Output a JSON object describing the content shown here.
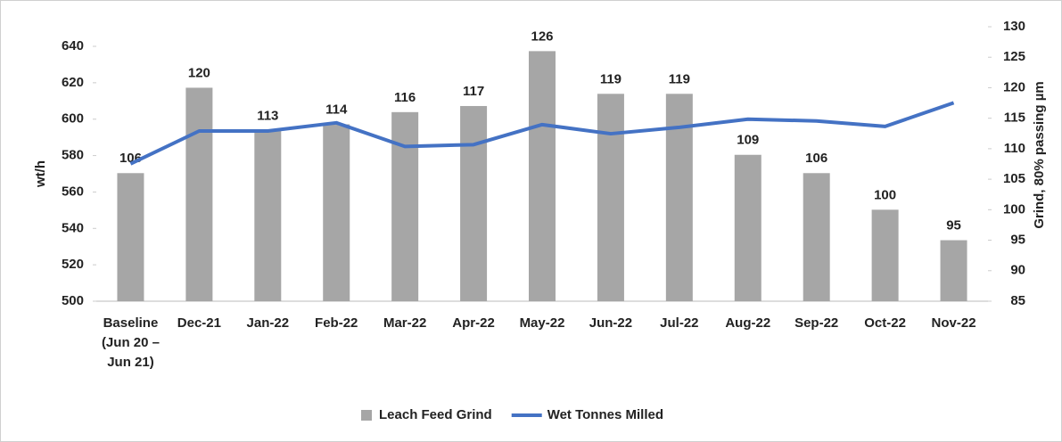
{
  "chart_data": {
    "type": "bar+line",
    "categories": [
      "Baseline (Jun 20 – Jun 21)",
      "Dec-21",
      "Jan-22",
      "Feb-22",
      "Mar-22",
      "Apr-22",
      "May-22",
      "Jun-22",
      "Jul-22",
      "Aug-22",
      "Sep-22",
      "Oct-22",
      "Nov-22"
    ],
    "y_label": "wt/h",
    "y2_label": "Grind, 80% passing µm",
    "ylim": [
      500,
      640
    ],
    "yticks": [
      500,
      520,
      540,
      560,
      580,
      600,
      620,
      640
    ],
    "y2lim": [
      85,
      130
    ],
    "y2ticks": [
      85,
      90,
      95,
      100,
      105,
      110,
      115,
      120,
      125,
      130
    ],
    "series": [
      {
        "name": "Leach Feed Grind",
        "type": "bar",
        "axis": "y2",
        "color": "#a6a6a6",
        "values": [
          106,
          120,
          113,
          114,
          116,
          117,
          126,
          119,
          119,
          109,
          106,
          100,
          95
        ]
      },
      {
        "name": "Wet Tonnes Milled",
        "type": "line",
        "axis": "y",
        "color": "#4472c4",
        "values": [
          575.5,
          593.5,
          593.5,
          598,
          585,
          586,
          597,
          592,
          595.5,
          600,
          599,
          596,
          609
        ]
      }
    ],
    "legend": "bottom"
  }
}
